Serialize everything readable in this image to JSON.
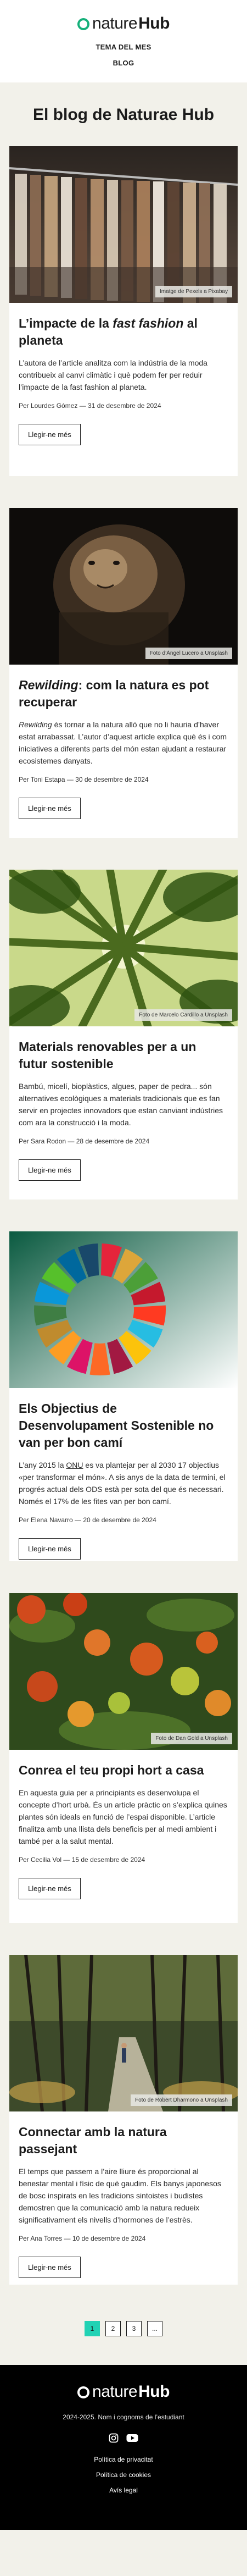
{
  "header": {
    "logo_light": "nature",
    "logo_bold": "Hub",
    "nav": [
      "TEMA DEL MES",
      "BLOG"
    ]
  },
  "page_title": "El blog de Naturae Hub",
  "posts": [
    {
      "title_before": "L’impacte de la ",
      "title_em": "fast fashion",
      "title_after": " al planeta",
      "excerpt": "L’autora de l’article analitza com la indústria de la moda contribueix al canvi climàtic i què podem fer per reduir l’impacte de la fast fashion al planeta.",
      "meta": "Per Lourdes Gómez — 31 de desembre de 2024",
      "credit": "Imatge de Pexels a Pixabay",
      "button": "Llegir-ne més"
    },
    {
      "title_before": "",
      "title_em": "Rewilding",
      "title_after": ": com la natura es pot recuperar",
      "excerpt": "Rewilding és tornar a la natura allò que no li hauria d’haver estat arrabassat. L’autor d’aquest article explica què és i com iniciatives a diferents parts del món estan ajudant a restaurar ecosistemes danyats.",
      "meta": "Per Toni Estapa — 30 de desembre de 2024",
      "credit": "Foto d’Ángel Lucero a Unsplash",
      "button": "Llegir-ne més"
    },
    {
      "title_before": "Materials renovables per a un futur sostenible",
      "title_em": "",
      "title_after": "",
      "excerpt": "Bambú, micelí, bioplàstics, algues, paper de pedra... són alternatives ecològiques a materials tradicionals que es fan servir en projectes innovadors que estan canviant indústries com ara la construcció i la moda.",
      "meta": "Per Sara Rodon — 28 de desembre de 2024",
      "credit": "Foto de Marcelo Cardillo a Unsplash",
      "button": "Llegir-ne més"
    },
    {
      "title_before": "Els Objectius de Desenvolupament Sostenible no van per bon camí",
      "title_em": "",
      "title_after": "",
      "excerpt": "L’any 2015 la ONU es va plantejar per al 2030 17 objectius «per transformar el món». A sis anys de la data de termini, el progrés actual dels ODS està per sota del que és necessari. Només el 17% de les fites van per bon camí.",
      "meta": "Per Elena Navarro — 20 de desembre de 2024",
      "credit": "",
      "button": "Llegir-ne més"
    },
    {
      "title_before": "Conrea el teu propi hort a casa",
      "title_em": "",
      "title_after": "",
      "excerpt": "En aquesta guia per a principiants es desenvolupa el concepte d’hort urbà. És un article pràctic on s’explica quines plantes són ideals en funció de l’espai disponible. L’article finalitza amb una llista dels beneficis per al medi ambient i també per a la salut mental.",
      "meta": "Per Cecilia Vol — 15 de desembre de 2024",
      "credit": "Foto de Dan Gold a Unsplash",
      "button": "Llegir-ne més"
    },
    {
      "title_before": "Connectar amb la natura passejant",
      "title_em": "",
      "title_after": "",
      "excerpt": "El temps que passem a l’aire lliure és proporcional al benestar mental i físic de què gaudim. Els banys japonesos de bosc inspirats en les tradicions sintoistes i budistes demostren que la comunicació amb la natura redueix significativament els nivells d’hormones de l’estrès.",
      "meta": "Per Ana Torres — 10 de desembre de 2024",
      "credit": "Foto de Robert Dharmono a Unsplash",
      "button": "Llegir-ne més"
    }
  ],
  "pagination": [
    "1",
    "2",
    "3",
    "..."
  ],
  "footer": {
    "logo_light": "nature",
    "logo_bold": "Hub",
    "copyright": "2024-2025. Nom i cognoms de l’estudiant",
    "links": [
      "Política de privacitat",
      "Política de cookies",
      "Avís legal"
    ]
  },
  "colors": {
    "accent": "#15b07a",
    "pagination_active": "#21d2b4",
    "footer_bg": "#000000"
  },
  "icons": [
    "instagram-icon",
    "youtube-icon"
  ]
}
